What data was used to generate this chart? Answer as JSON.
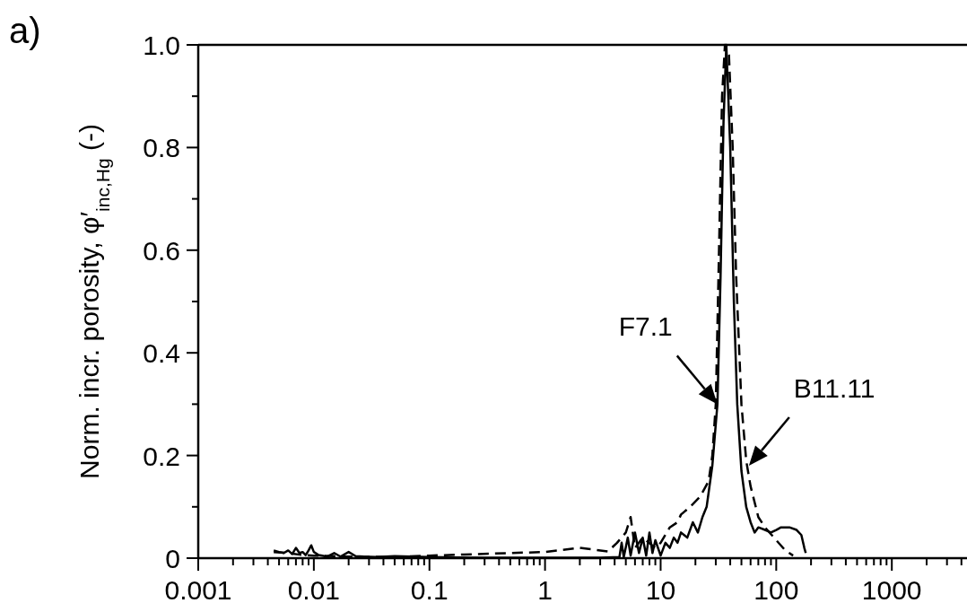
{
  "chart_data": {
    "type": "line",
    "ylabel": "Norm. incr. porosity,  φ′$_{inc,Hg}$ (-)",
    "annotations": [
      "a)",
      {
        "text": "F7.1",
        "x": 31,
        "y": 0.3
      },
      {
        "text": "B11.11",
        "x": 58,
        "y": 0.18
      }
    ],
    "log": "x",
    "xlim": [
      0.001,
      4470
    ],
    "ylim": [
      0,
      1
    ],
    "xticks": [
      0.001,
      {
        "value": 0.002,
        "label": null
      },
      {
        "value": 0.003,
        "label": null
      },
      {
        "value": 0.004,
        "label": null
      },
      {
        "value": 0.005,
        "label": null
      },
      {
        "value": 0.006,
        "label": null
      },
      {
        "value": 0.007,
        "label": null
      },
      {
        "value": 0.008,
        "label": null
      },
      {
        "value": 0.009,
        "label": null
      },
      0.01,
      {
        "value": 0.02,
        "label": null
      },
      {
        "value": 0.03,
        "label": null
      },
      {
        "value": 0.04,
        "label": null
      },
      {
        "value": 0.05,
        "label": null
      },
      {
        "value": 0.06,
        "label": null
      },
      {
        "value": 0.07,
        "label": null
      },
      {
        "value": 0.08,
        "label": null
      },
      {
        "value": 0.09,
        "label": null
      },
      0.1,
      {
        "value": 0.2,
        "label": null
      },
      {
        "value": 0.3,
        "label": null
      },
      {
        "value": 0.4,
        "label": null
      },
      {
        "value": 0.5,
        "label": null
      },
      {
        "value": 0.6,
        "label": null
      },
      {
        "value": 0.7,
        "label": null
      },
      {
        "value": 0.8,
        "label": null
      },
      {
        "value": 0.9,
        "label": null
      },
      1,
      {
        "value": 2,
        "label": null
      },
      {
        "value": 3,
        "label": null
      },
      {
        "value": 4,
        "label": null
      },
      {
        "value": 5,
        "label": null
      },
      {
        "value": 6,
        "label": null
      },
      {
        "value": 7,
        "label": null
      },
      {
        "value": 8,
        "label": null
      },
      {
        "value": 9,
        "label": null
      },
      10,
      {
        "value": 20,
        "label": null
      },
      {
        "value": 30,
        "label": null
      },
      {
        "value": 40,
        "label": null
      },
      {
        "value": 50,
        "label": null
      },
      {
        "value": 60,
        "label": null
      },
      {
        "value": 70,
        "label": null
      },
      {
        "value": 80,
        "label": null
      },
      {
        "value": 90,
        "label": null
      },
      100,
      {
        "value": 200,
        "label": null
      },
      {
        "value": 300,
        "label": null
      },
      {
        "value": 400,
        "label": null
      },
      {
        "value": 500,
        "label": null
      },
      {
        "value": 600,
        "label": null
      },
      {
        "value": 700,
        "label": null
      },
      {
        "value": 800,
        "label": null
      },
      {
        "value": 900,
        "label": null
      },
      1000,
      {
        "value": 2000,
        "label": null
      },
      {
        "value": 3000,
        "label": null
      },
      {
        "value": 4000,
        "label": null
      }
    ],
    "yticks": [
      0,
      {
        "value": 0.1,
        "label": null
      },
      0.2,
      {
        "value": 0.3,
        "label": null
      },
      0.4,
      {
        "value": 0.5,
        "label": null
      },
      0.6,
      {
        "value": 0.7,
        "label": null
      },
      0.8,
      {
        "value": 0.9,
        "label": null
      },
      {
        "value": 1,
        "label": "1.0"
      }
    ],
    "marker": "none",
    "series": [
      {
        "color": "#000000",
        "line_style": "solid",
        "x": [
          0.0045,
          0.005,
          0.0055,
          0.006,
          0.0065,
          0.007,
          0.0075,
          0.008,
          0.0085,
          0.009,
          0.0095,
          0.01,
          0.011,
          0.013,
          0.015,
          0.017,
          0.02,
          0.023,
          0.027,
          0.035,
          0.05,
          0.07,
          0.1,
          0.3,
          1,
          3,
          4.4,
          4.6,
          4.8,
          5.2,
          5.5,
          6,
          6.5,
          7,
          7.5,
          8,
          8.5,
          9,
          10,
          11,
          12,
          13,
          14,
          15,
          17,
          19,
          21,
          23,
          25,
          28,
          31,
          33,
          35,
          37,
          40,
          43,
          46,
          50,
          55,
          60,
          65,
          70,
          80,
          90,
          100,
          110,
          130,
          150,
          165,
          175,
          180
        ],
        "values": [
          0.015,
          0.012,
          0.01,
          0.015,
          0.008,
          0.02,
          0.01,
          0.012,
          0.006,
          0.015,
          0.025,
          0.012,
          0.006,
          0.003,
          0.01,
          0.003,
          0.012,
          0.004,
          0.003,
          0.002,
          0.004,
          0.003,
          0.002,
          0.001,
          0.001,
          0.001,
          0.002,
          0.03,
          0.002,
          0.04,
          0.005,
          0.05,
          0.01,
          0.04,
          0.005,
          0.05,
          0.01,
          0.035,
          0.005,
          0.03,
          0.02,
          0.04,
          0.03,
          0.05,
          0.04,
          0.07,
          0.05,
          0.08,
          0.1,
          0.18,
          0.3,
          0.55,
          0.85,
          1.0,
          0.8,
          0.5,
          0.3,
          0.17,
          0.1,
          0.07,
          0.05,
          0.06,
          0.055,
          0.05,
          0.055,
          0.06,
          0.06,
          0.055,
          0.045,
          0.02,
          0.01
        ]
      },
      {
        "color": "#000000",
        "line_style": "dashed",
        "x": [
          0.0045,
          0.006,
          0.008,
          0.01,
          0.02,
          0.05,
          0.1,
          0.2,
          0.5,
          1,
          2,
          3.5,
          4.2,
          5,
          5.5,
          6,
          7,
          9,
          10,
          12,
          14,
          15,
          18,
          22,
          26,
          28,
          30,
          32,
          34,
          36,
          39,
          42,
          45,
          50,
          55,
          60,
          70,
          80,
          100,
          120,
          140
        ],
        "values": [
          0.012,
          0.01,
          0.006,
          0.005,
          0.003,
          0.002,
          0.005,
          0.007,
          0.01,
          0.012,
          0.02,
          0.013,
          0.03,
          0.05,
          0.08,
          0.02,
          0.04,
          0.02,
          0.03,
          0.06,
          0.07,
          0.085,
          0.1,
          0.12,
          0.15,
          0.2,
          0.3,
          0.6,
          0.9,
          1.0,
          0.98,
          0.8,
          0.55,
          0.3,
          0.19,
          0.14,
          0.08,
          0.06,
          0.035,
          0.015,
          0.005
        ]
      }
    ]
  }
}
